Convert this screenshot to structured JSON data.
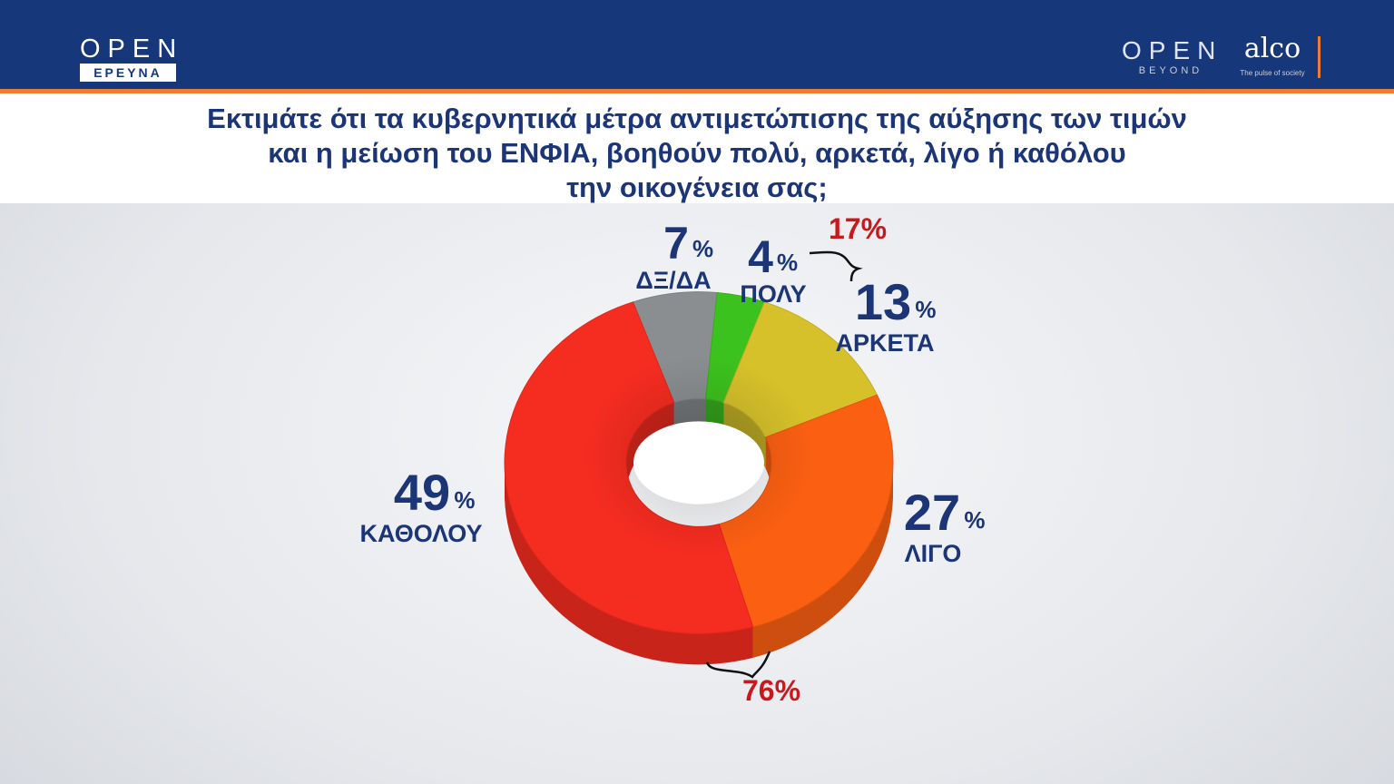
{
  "header": {
    "logo_left": {
      "word": "OPEN",
      "sub": "ΕΡΕΥΝΑ"
    },
    "logo_right": {
      "word": "OPEN",
      "sub": "BEYOND"
    },
    "logo_partner": {
      "word": "alco",
      "sub": "The pulse of society"
    }
  },
  "title_lines": [
    "Εκτιμάτε ότι τα κυβερνητικά μέτρα αντιμετώπισης της αύξησης των τιμών",
    "και η μείωση του ΕΝΦΙΑ, βοηθούν πολύ, αρκετά, λίγο ή καθόλου",
    "την οικογένεια σας;"
  ],
  "colors": {
    "header_bg": "#17377b",
    "accent": "#f07a2e",
    "label_blue": "#1b3577",
    "label_red": "#c8191c"
  },
  "chart_data": {
    "type": "pie",
    "style": "3d-donut",
    "categories": [
      "ΔΞ/ΔΑ",
      "ΠΟΛΥ",
      "ΑΡΚΕΤΑ",
      "ΛΙΓΟ",
      "ΚΑΘΟΛΟΥ"
    ],
    "values": [
      7,
      4,
      13,
      27,
      49
    ],
    "unit": "%",
    "slice_colors": [
      "#8a8e90",
      "#3cc21e",
      "#d6c12a",
      "#fb5f12",
      "#f52c20"
    ],
    "groups": [
      {
        "value": "17%",
        "members": [
          "ΠΟΛΥ",
          "ΑΡΚΕΤΑ"
        ]
      },
      {
        "value": "76%",
        "members": [
          "ΛΙΓΟ",
          "ΚΑΘΟΛΟΥ"
        ]
      }
    ]
  }
}
